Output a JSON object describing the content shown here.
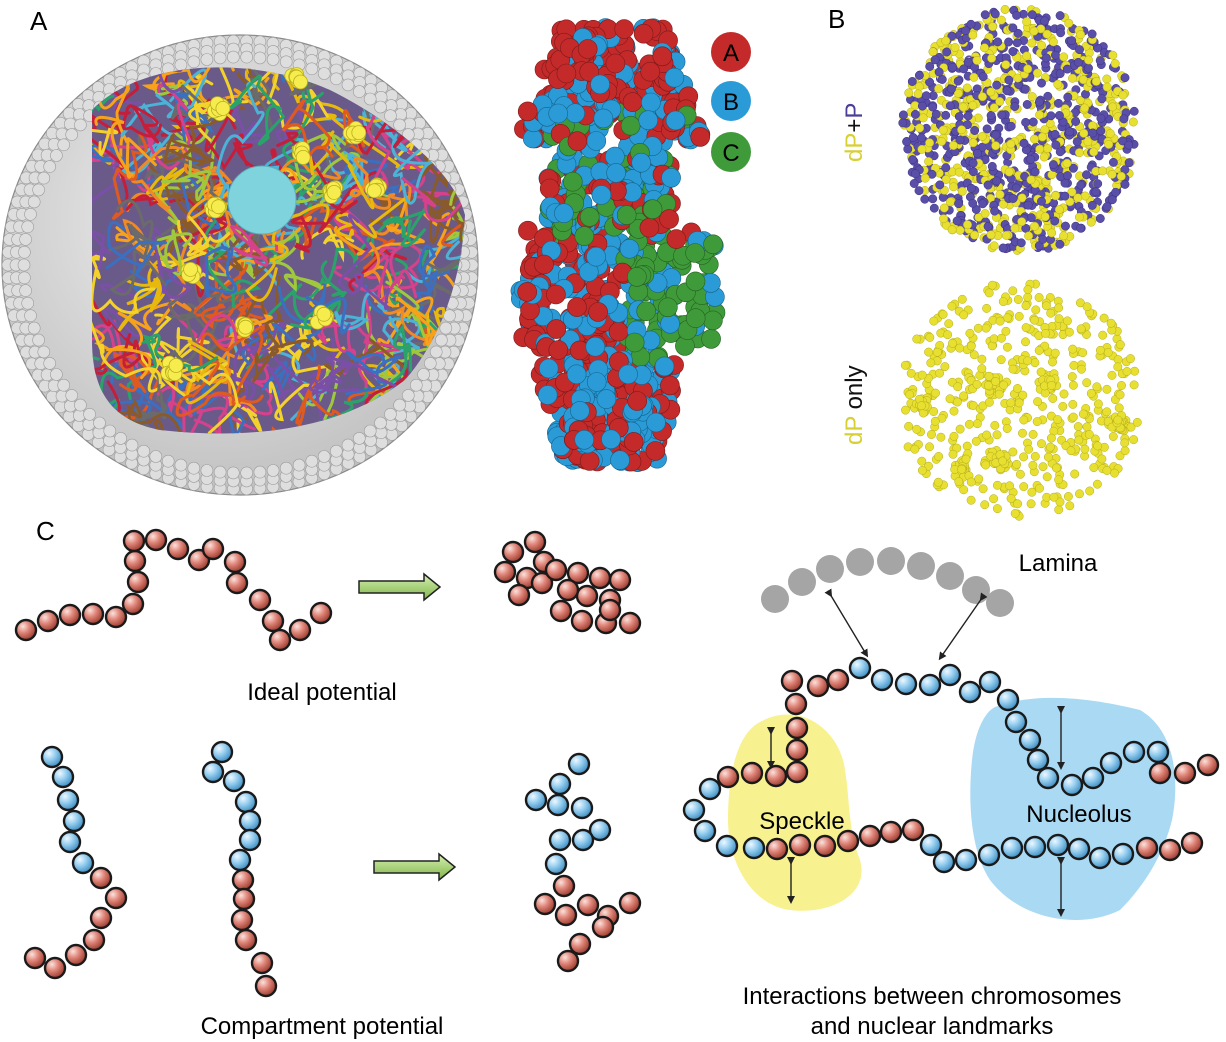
{
  "panels": {
    "a": "A",
    "b": "B",
    "c": "C"
  },
  "legend": [
    {
      "key": "a",
      "label": "A",
      "color": "#c42a2a"
    },
    {
      "key": "b",
      "label": "B",
      "color": "#2a9bd6"
    },
    {
      "key": "c",
      "label": "C",
      "color": "#3f9a3a"
    }
  ],
  "panel_b": {
    "top_label": {
      "dp": "dP",
      "plus": "+",
      "p": "P"
    },
    "bottom_label": {
      "dp": "dP",
      "only": " only"
    },
    "colors": {
      "dp": "#e8e030",
      "p": "#5a4fa8"
    }
  },
  "panel_c": {
    "ideal_caption": "Ideal potential",
    "compartment_caption": "Compartment potential",
    "lamina": "Lamina",
    "speckle": "Speckle",
    "nucleolus": "Nucleolus",
    "interactions_caption_1": "Interactions between chromosomes",
    "interactions_caption_2": "and nuclear landmarks",
    "colors": {
      "a_bead": "#d9776a",
      "b_bead": "#8cc8ee",
      "lamina_bead": "#a5a5a5",
      "speckle_region": "#f8f18f",
      "nucleolus_region": "#a9d9f3",
      "arrow_fill": "#a6d66a"
    }
  }
}
